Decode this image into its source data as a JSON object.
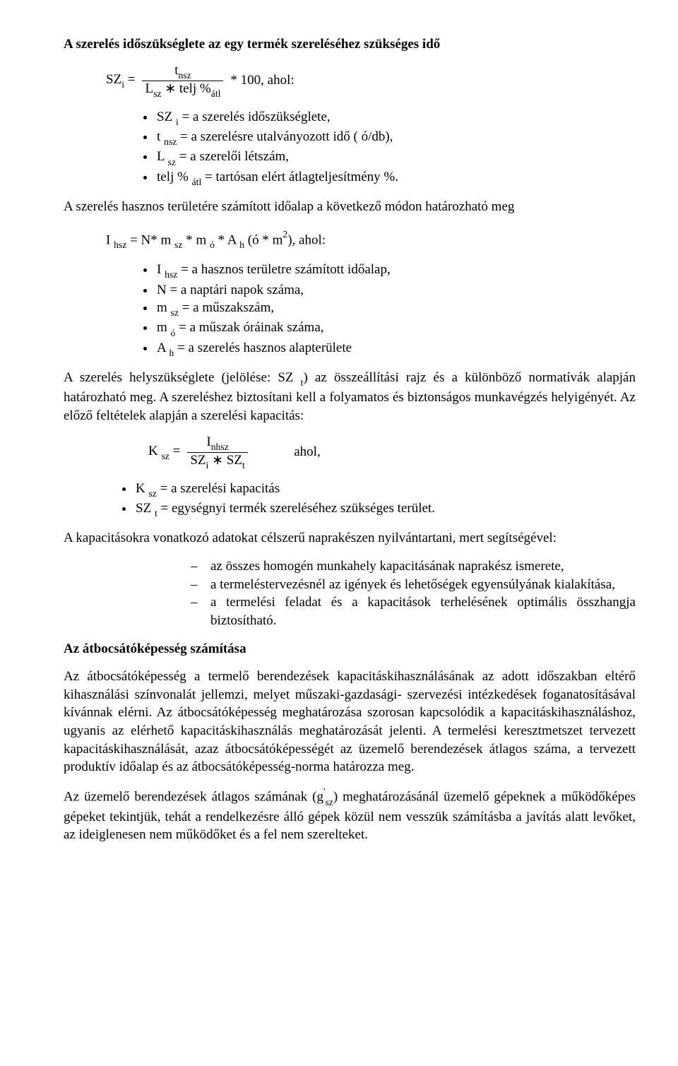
{
  "h1": "A szerelés időszükséglete az egy termék szereléséhez szükséges idő",
  "f1": {
    "lhs": "SZ",
    "lhs_sub": "i",
    "eq": " = ",
    "num": "t",
    "num_sub": "nsz",
    "den_L": "L",
    "den_L_sub": "sz",
    "den_mid": " ∗ telj %",
    "den_end_sub": "átl",
    "tail": " * 100,   ahol:"
  },
  "list1": [
    {
      "pre": "SZ ",
      "sub": "i",
      "post": " = a szerelés időszükséglete,"
    },
    {
      "pre": "t ",
      "sub": "nsz",
      "post": " = a szerelésre utalványozott idő ( ó/db),"
    },
    {
      "pre": "L ",
      "sub": "sz",
      "post": " = a szerelői létszám,"
    },
    {
      "pre": "telj % ",
      "sub": "átl",
      "post": " = tartósan elért átlagteljesítmény %."
    }
  ],
  "p2": "A szerelés hasznos területére számított időalap a következő módon határozható meg",
  "f2": {
    "a": "I ",
    "a_sub": "hsz",
    "b": " = N* m ",
    "b_sub": "sz",
    "c": " * m ",
    "c_sub": "ó",
    "d": " * A ",
    "d_sub": "h",
    "e": " (ó * m",
    "e_sup": "2",
    "f": "),   ahol:"
  },
  "list2": [
    {
      "pre": "I ",
      "sub": "hsz",
      "post": " = a hasznos területre számított időalap,"
    },
    {
      "pre": "N = a naptári napok száma,",
      "sub": "",
      "post": ""
    },
    {
      "pre": "m ",
      "sub": "sz",
      "post": " = a műszakszám,"
    },
    {
      "pre": "m ",
      "sub": "ó",
      "post": " = a műszak óráinak száma,"
    },
    {
      "pre": "A ",
      "sub": "h",
      "post": " = a szerelés hasznos alapterülete"
    }
  ],
  "p3a": "A szerelés helyszükséglete (jelölése: SZ ",
  "p3a_sub": "t",
  "p3b": ") az összeállítási rajz és a különböző normatívák alapján határozható meg. A szereléshez biztosítani kell a folyamatos és biztonságos munkavégzés helyigényét. Az előző feltételek alapján a szerelési kapacitás:",
  "f3": {
    "lhs": "K ",
    "lhs_sub": "sz",
    "eq": " = ",
    "num": "I",
    "num_sub": "nhsz",
    "den_a": "SZ",
    "den_a_sub": "i",
    "den_mid": " ∗ SZ",
    "den_b_sub": "t",
    "tail_spacer": "          ",
    "tail": "ahol,"
  },
  "list3": [
    {
      "pre": "K ",
      "sub": "sz",
      "post": " = a szerelési kapacitás"
    },
    {
      "pre": "SZ ",
      "sub": "t",
      "post": " = egységnyi termék szereléséhez szükséges terület."
    }
  ],
  "p4": "A kapacitásokra vonatkozó adatokat célszerű naprakészen nyilvántartani, mert segítségével:",
  "list4": [
    "az összes homogén munkahely kapacitásának naprakész ismerete,",
    "a termeléstervezésnél az igények és lehetőségek egyensúlyának kialakítása,",
    "a termelési feladat és a kapacitások terhelésének optimális összhangja biztosítható."
  ],
  "h2": "Az átbocsátóképesség számítása",
  "p5": "Az átbocsátóképesség a termelő berendezések kapacitáskihasználásának az adott időszakban eltérő kihasználási színvonalát jellemzi, melyet műszaki-gazdasági- szervezési intézkedések foganatosításával kívánnak elérni. Az átbocsátóképesség meghatározása szorosan kapcsolódik a kapacitáskihasználáshoz, ugyanis az elérhető kapacitáskihasználás meghatározását jelenti. A termelési keresztmetszet tervezett kapacitáskihasználását, azaz átbocsátóképességét az üzemelő berendezések átlagos száma, a tervezett produktív időalap és az átbocsátóképesség-norma határozza meg.",
  "p6a": "Az üzemelő berendezések átlagos számának (g",
  "p6a_sup": "'",
  "p6a_sub": "sz",
  "p6b": ") meghatározásánál üzemelő gépeknek a működőképes gépeket tekintjük, tehát a rendelkezésre álló gépek közül nem vesszük számításba a javítás alatt levőket, az ideiglenesen nem működőket és a fel nem szerelteket."
}
